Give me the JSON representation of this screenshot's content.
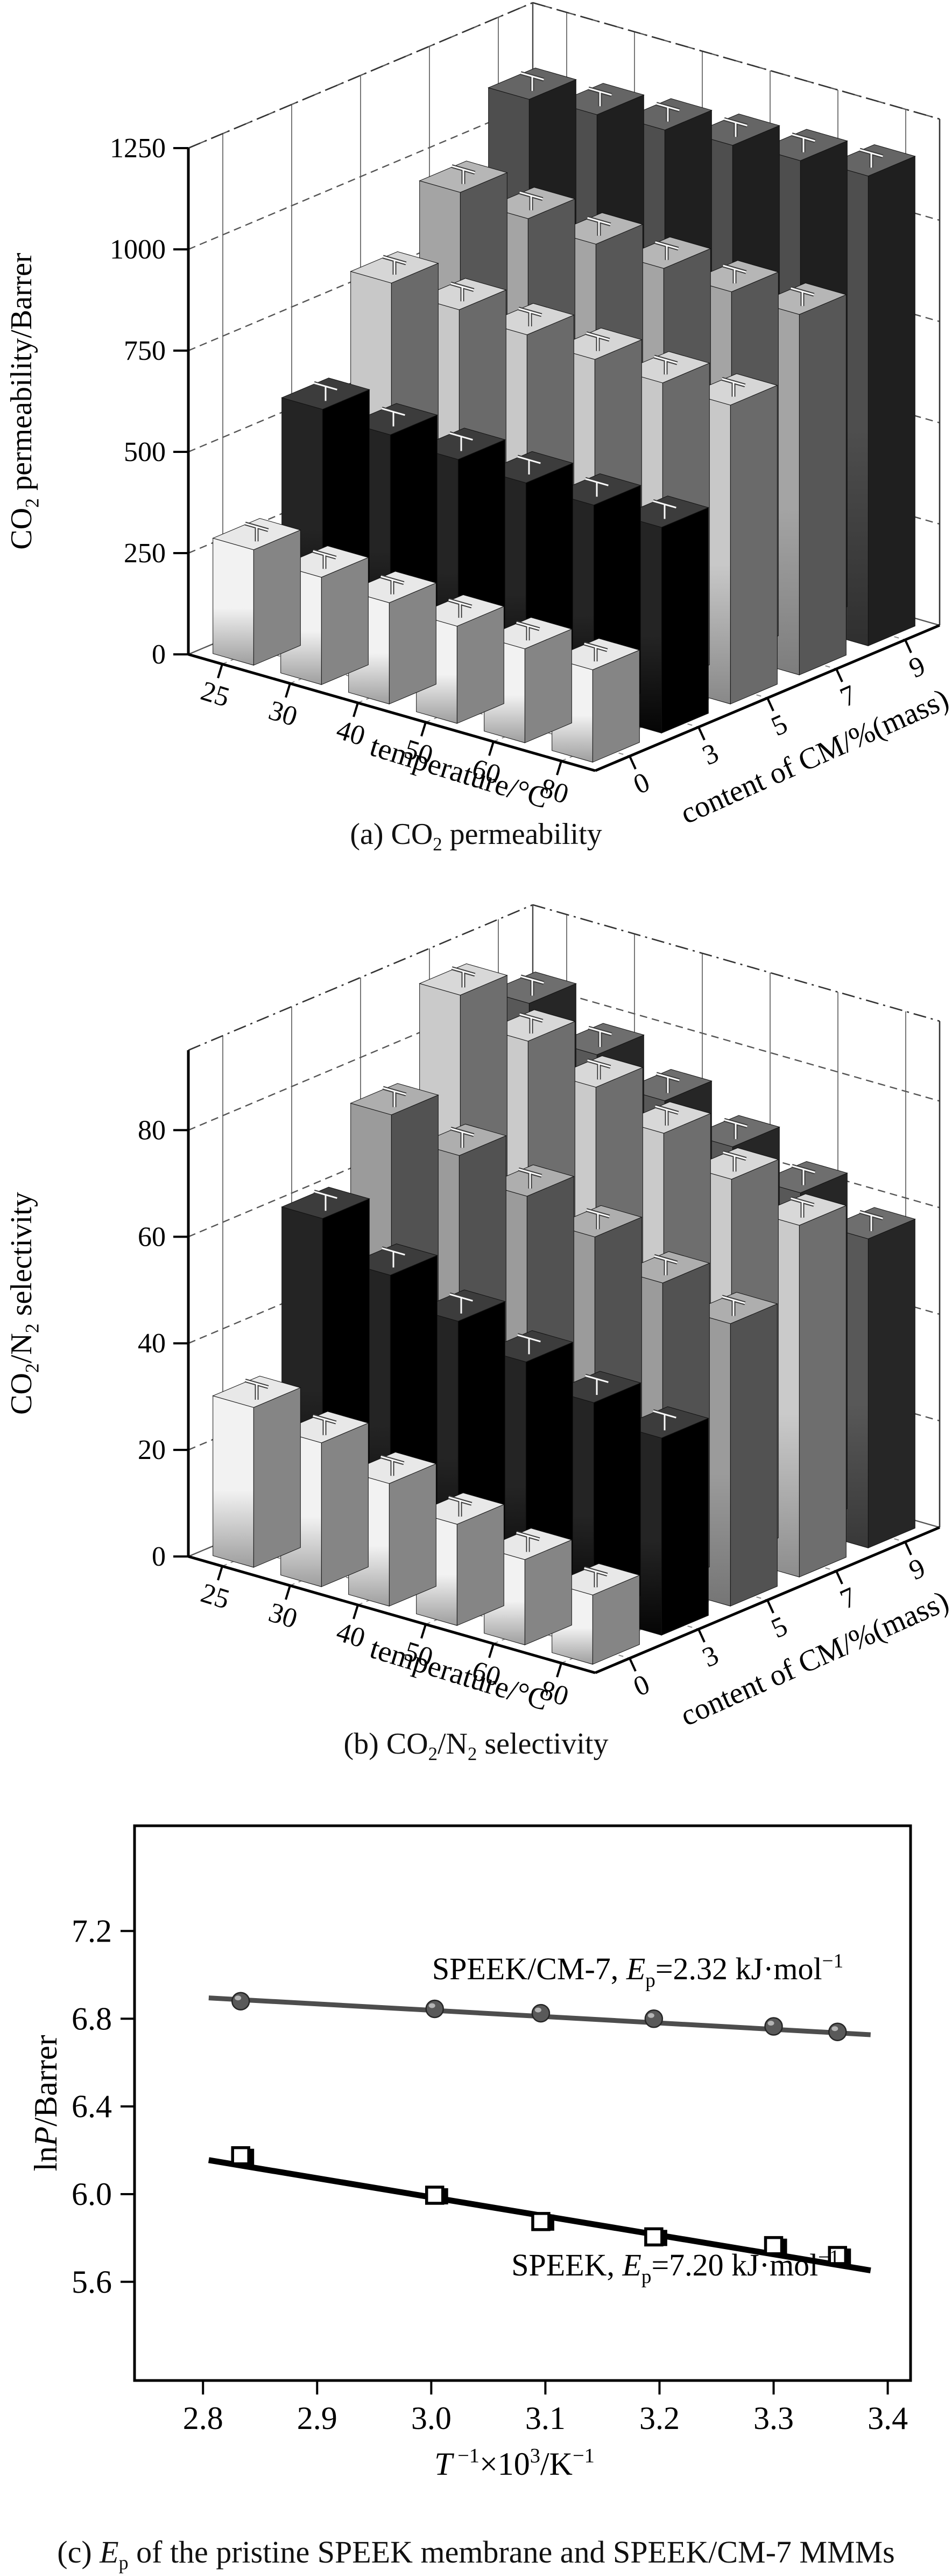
{
  "captions": {
    "a_pre": "(a) CO",
    "a_sub": "2",
    "a_rest": " permeability",
    "b_pre": "(b) CO",
    "b_sub1": "2",
    "b_mid": "/N",
    "b_sub2": "2",
    "b_rest": " selectivity",
    "c_pre": "(c) ",
    "c_E": "E",
    "c_sub": "p",
    "c_rest": " of the pristine SPEEK membrane and SPEEK/CM-7 MMMs"
  },
  "chart_data": [
    {
      "id": "a",
      "type": "bar3d",
      "title": "(a) CO2 permeability",
      "zlabel_parts": [
        {
          "t": "CO"
        },
        {
          "t": "2",
          "sub": true
        },
        {
          "t": " permeability/Barrer"
        }
      ],
      "xlabel_parts": [
        {
          "t": "temperature/°C"
        }
      ],
      "dlabel_parts": [
        {
          "t": "content of CM/%(mass)"
        }
      ],
      "xcats": [
        "25",
        "30",
        "40",
        "50",
        "60",
        "80"
      ],
      "dcats": [
        "0",
        "3",
        "5",
        "7",
        "9"
      ],
      "zticks": [
        "0",
        "250",
        "500",
        "750",
        "1000",
        "1250"
      ],
      "ztick_values": [
        0,
        250,
        500,
        750,
        1000,
        1250
      ],
      "zlim": 1250,
      "err": 18,
      "rows": [
        {
          "cm": "0",
          "values": [
            285,
            265,
            250,
            240,
            232,
            228
          ],
          "front_top": "#f2f2f2",
          "front_bottom": "#9e9e9e",
          "side": "#858585",
          "top": "#e8e8e8"
        },
        {
          "cm": "3",
          "values": [
            560,
            545,
            532,
            522,
            515,
            508
          ],
          "front_top": "#242424",
          "front_bottom": "#050505",
          "side": "#000000",
          "top": "#3c3c3c"
        },
        {
          "cm": "5",
          "values": [
            800,
            782,
            768,
            755,
            745,
            738
          ],
          "front_top": "#c8c8c8",
          "front_bottom": "#888888",
          "side": "#6a6a6a",
          "top": "#d6d6d6"
        },
        {
          "cm": "7",
          "values": [
            952,
            935,
            920,
            908,
            898,
            890
          ],
          "front_top": "#a4a4a4",
          "front_bottom": "#7d7d7d",
          "side": "#575757",
          "top": "#b6b6b6"
        },
        {
          "cm": "9",
          "values": [
            1110,
            1120,
            1130,
            1140,
            1150,
            1160
          ],
          "front_top": "#4e4e4e",
          "front_bottom": "#2f2f2f",
          "side": "#1f1f1f",
          "top": "#656565"
        }
      ]
    },
    {
      "id": "b",
      "type": "bar3d",
      "title": "(b) CO2/N2 selectivity",
      "zlabel_parts": [
        {
          "t": "CO"
        },
        {
          "t": "2",
          "sub": true
        },
        {
          "t": "/N"
        },
        {
          "t": "2",
          "sub": true
        },
        {
          "t": " selectivity"
        }
      ],
      "xlabel_parts": [
        {
          "t": "temperature/°C"
        }
      ],
      "dlabel_parts": [
        {
          "t": "content of CM/%(mass)"
        }
      ],
      "xcats": [
        "25",
        "30",
        "40",
        "50",
        "60",
        "80"
      ],
      "dcats": [
        "0",
        "3",
        "5",
        "7",
        "9"
      ],
      "zticks": [
        "0",
        "20",
        "40",
        "60",
        "80"
      ],
      "ztick_values": [
        0,
        20,
        40,
        60,
        80
      ],
      "zlim": 95,
      "err": 1.5,
      "rows": [
        {
          "cm": "0",
          "values": [
            30,
            27,
            23,
            19,
            16,
            13
          ],
          "front_top": "#f2f2f2",
          "front_bottom": "#9e9e9e",
          "side": "#858585",
          "top": "#e8e8e8"
        },
        {
          "cm": "3",
          "values": [
            60,
            53,
            48,
            44,
            40,
            37
          ],
          "front_top": "#242424",
          "front_bottom": "#050505",
          "side": "#000000",
          "top": "#3c3c3c"
        },
        {
          "cm": "5",
          "values": [
            74,
            70,
            66,
            62,
            57,
            53
          ],
          "front_top": "#9b9b9b",
          "front_bottom": "#757575",
          "side": "#525252",
          "top": "#aeaeae"
        },
        {
          "cm": "7",
          "values": [
            91,
            86,
            81,
            76,
            71,
            66
          ],
          "front_top": "#cacaca",
          "front_bottom": "#8d8d8d",
          "side": "#6e6e6e",
          "top": "#d8d8d8"
        },
        {
          "cm": "9",
          "values": [
            84,
            78,
            73,
            68,
            63,
            58
          ],
          "front_top": "#585858",
          "front_bottom": "#383838",
          "side": "#262626",
          "top": "#6e6e6e"
        }
      ]
    },
    {
      "id": "c",
      "type": "scatter-line",
      "title": "(c) Ep of the pristine SPEEK membrane and SPEEK/CM-7 MMMs",
      "xlabel_parts": [
        {
          "t": "T",
          "italic": true
        },
        {
          "t": " −1",
          "sup": true
        },
        {
          "t": "×10"
        },
        {
          "t": "3",
          "sup": true
        },
        {
          "t": "/K"
        },
        {
          "t": "−1",
          "sup": true
        }
      ],
      "ylabel_parts": [
        {
          "t": "ln"
        },
        {
          "t": "P",
          "italic": true
        },
        {
          "t": "/Barrer"
        }
      ],
      "xticks": [
        "2.8",
        "2.9",
        "3.0",
        "3.1",
        "3.2",
        "3.3",
        "3.4"
      ],
      "xtick_values": [
        2.8,
        2.9,
        3.0,
        3.1,
        3.2,
        3.3,
        3.4
      ],
      "yticks": [
        "5.6",
        "6.0",
        "6.4",
        "6.8",
        "7.2"
      ],
      "ytick_values": [
        5.6,
        6.0,
        6.4,
        6.8,
        7.2
      ],
      "xlim": [
        2.74,
        3.42
      ],
      "ylim": [
        5.15,
        7.68
      ],
      "series": [
        {
          "name": "SPEEK/CM-7",
          "Ep_kJ_mol": 2.32,
          "marker": "sphere",
          "color": "#4d4d4d",
          "x": [
            2.833,
            3.003,
            3.096,
            3.195,
            3.3,
            3.356
          ],
          "y": [
            6.88,
            6.845,
            6.825,
            6.8,
            6.765,
            6.74
          ],
          "fit": [
            [
              2.805,
              6.895
            ],
            [
              3.385,
              6.727
            ]
          ],
          "label_parts": [
            {
              "t": "SPEEK/CM-7, "
            },
            {
              "t": "E",
              "italic": true
            },
            {
              "t": "p",
              "sub": true
            },
            {
              "t": "=2.32 kJ·mol"
            },
            {
              "t": "−1",
              "sup": true
            }
          ]
        },
        {
          "name": "SPEEK",
          "Ep_kJ_mol": 7.2,
          "marker": "open-square",
          "color": "#000000",
          "x": [
            2.833,
            3.003,
            3.096,
            3.195,
            3.3,
            3.356
          ],
          "y": [
            6.175,
            5.995,
            5.875,
            5.805,
            5.765,
            5.72
          ],
          "fit": [
            [
              2.805,
              6.155
            ],
            [
              3.385,
              5.652
            ]
          ],
          "label_parts": [
            {
              "t": "SPEEK, "
            },
            {
              "t": "E",
              "italic": true
            },
            {
              "t": "p",
              "sub": true
            },
            {
              "t": "=7.20 kJ·mol"
            },
            {
              "t": "−1",
              "sup": true
            }
          ]
        }
      ]
    }
  ]
}
